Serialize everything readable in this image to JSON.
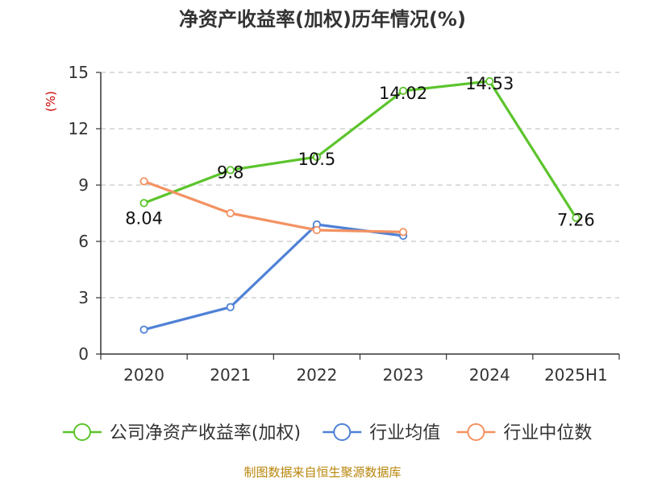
{
  "chart_data": {
    "type": "line",
    "title": "净资产收益率(加权)历年情况(%)",
    "ylabel": "(%)",
    "xlabel": "",
    "categories": [
      "2020",
      "2021",
      "2022",
      "2023",
      "2024",
      "2025H1"
    ],
    "ylim": [
      0,
      15
    ],
    "yticks": [
      "0",
      "3",
      "6",
      "9",
      "12",
      "15"
    ],
    "grid": true,
    "legend_position": "bottom",
    "series": [
      {
        "name": "公司净资产收益率(加权)",
        "color": "#5cc42c",
        "values": [
          8.04,
          9.8,
          10.5,
          14.02,
          14.53,
          7.26
        ],
        "labels": [
          "8.04",
          "9.8",
          "10.5",
          "14.02",
          "14.53",
          "7.26"
        ]
      },
      {
        "name": "行业均值",
        "color": "#4f81d6",
        "values": [
          1.3,
          2.5,
          6.9,
          6.3,
          null,
          null
        ]
      },
      {
        "name": "行业中位数",
        "color": "#f39262",
        "values": [
          9.2,
          7.5,
          6.6,
          6.5,
          null,
          null
        ]
      }
    ]
  },
  "source": "制图数据来自恒生聚源数据库"
}
